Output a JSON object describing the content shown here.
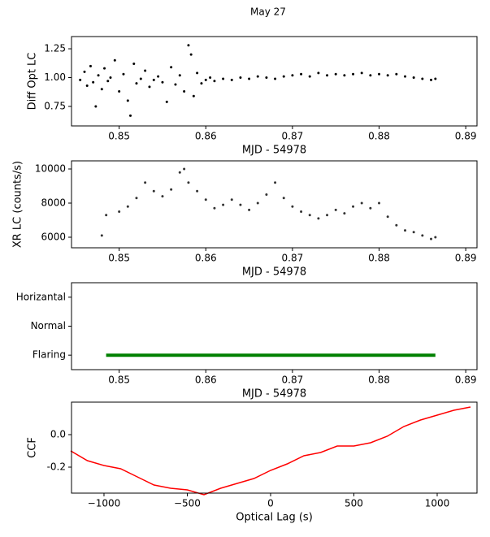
{
  "title": "May 27",
  "chart_data": [
    {
      "type": "scatter",
      "ylabel": "Diff Opt LC",
      "xlabel": "MJD - 54978",
      "color": "#000000",
      "x": [
        0.8455,
        0.846,
        0.8463,
        0.8467,
        0.847,
        0.8473,
        0.8476,
        0.848,
        0.8483,
        0.8487,
        0.849,
        0.8495,
        0.85,
        0.8505,
        0.851,
        0.8513,
        0.8517,
        0.852,
        0.8525,
        0.853,
        0.8535,
        0.854,
        0.8545,
        0.855,
        0.8555,
        0.856,
        0.8565,
        0.857,
        0.8575,
        0.858,
        0.8583,
        0.8586,
        0.859,
        0.8595,
        0.86,
        0.8605,
        0.861,
        0.862,
        0.863,
        0.864,
        0.865,
        0.866,
        0.867,
        0.868,
        0.869,
        0.87,
        0.871,
        0.872,
        0.873,
        0.874,
        0.875,
        0.876,
        0.877,
        0.878,
        0.879,
        0.88,
        0.881,
        0.882,
        0.883,
        0.884,
        0.885,
        0.886,
        0.8865
      ],
      "values": [
        0.98,
        1.05,
        0.93,
        1.1,
        0.96,
        0.75,
        1.02,
        0.9,
        1.08,
        0.97,
        1.0,
        1.15,
        0.88,
        1.03,
        0.8,
        0.67,
        1.12,
        0.95,
        0.99,
        1.06,
        0.92,
        0.98,
        1.01,
        0.96,
        0.79,
        1.09,
        0.94,
        1.02,
        0.88,
        1.28,
        1.2,
        0.84,
        1.04,
        0.95,
        0.98,
        1.0,
        0.97,
        0.99,
        0.98,
        1.0,
        0.99,
        1.01,
        1.0,
        0.99,
        1.01,
        1.02,
        1.03,
        1.01,
        1.04,
        1.02,
        1.03,
        1.02,
        1.03,
        1.04,
        1.02,
        1.03,
        1.02,
        1.03,
        1.01,
        1.0,
        0.99,
        0.98,
        0.99
      ],
      "xlim": [
        0.8445,
        0.8913
      ],
      "xticks": [
        0.85,
        0.86,
        0.87,
        0.88,
        0.89
      ],
      "ylim": [
        0.581,
        1.356
      ],
      "yticks": [
        {
          "value": 0.75,
          "label": "0.75"
        },
        {
          "value": 1.0,
          "label": "1.00"
        },
        {
          "value": 1.25,
          "label": "1.25"
        }
      ]
    },
    {
      "type": "scatter",
      "ylabel": "XR LC (counts/s)",
      "xlabel": "MJD - 54978",
      "color": "#333333",
      "x": [
        0.848,
        0.8485,
        0.85,
        0.851,
        0.852,
        0.853,
        0.854,
        0.855,
        0.856,
        0.857,
        0.8575,
        0.858,
        0.859,
        0.86,
        0.861,
        0.862,
        0.863,
        0.864,
        0.865,
        0.866,
        0.867,
        0.868,
        0.869,
        0.87,
        0.871,
        0.872,
        0.873,
        0.874,
        0.875,
        0.876,
        0.877,
        0.878,
        0.879,
        0.88,
        0.881,
        0.882,
        0.883,
        0.884,
        0.885,
        0.886,
        0.8865
      ],
      "values": [
        6100,
        7300,
        7500,
        7800,
        8300,
        9200,
        8700,
        8400,
        8800,
        9800,
        10000,
        9200,
        8700,
        8200,
        7700,
        7900,
        8200,
        7900,
        7600,
        8000,
        8500,
        9200,
        8300,
        7800,
        7500,
        7300,
        7100,
        7300,
        7600,
        7400,
        7800,
        8000,
        7700,
        8000,
        7200,
        6700,
        6400,
        6300,
        6100,
        5900,
        6000
      ],
      "xlim": [
        0.8445,
        0.8913
      ],
      "xticks": [
        0.85,
        0.86,
        0.87,
        0.88,
        0.89
      ],
      "ylim": [
        5381,
        10476
      ],
      "yticks": [
        6000,
        8000,
        10000
      ]
    },
    {
      "type": "state",
      "xlabel": "MJD - 54978",
      "color": "#008000",
      "y_categories": [
        "Horizantal",
        "Normal",
        "Flaring"
      ],
      "x": [
        0.8485,
        0.8865
      ],
      "values": [
        "Flaring",
        "Flaring"
      ],
      "xlim": [
        0.8445,
        0.8913
      ],
      "xticks": [
        0.85,
        0.86,
        0.87,
        0.88,
        0.89
      ]
    },
    {
      "type": "line",
      "ylabel": "CCF",
      "xlabel": "Optical Lag (s)",
      "color": "#ff0000",
      "x": [
        -1200,
        -1100,
        -1000,
        -900,
        -800,
        -700,
        -600,
        -500,
        -400,
        -300,
        -200,
        -100,
        0,
        100,
        200,
        300,
        400,
        500,
        600,
        700,
        800,
        900,
        1000,
        1100,
        1200
      ],
      "values": [
        -0.1,
        -0.16,
        -0.19,
        -0.21,
        -0.26,
        -0.31,
        -0.33,
        -0.34,
        -0.37,
        -0.33,
        -0.3,
        -0.27,
        -0.22,
        -0.18,
        -0.13,
        -0.11,
        -0.07,
        -0.07,
        -0.05,
        -0.01,
        0.05,
        0.09,
        0.12,
        0.15,
        0.17
      ],
      "xlim": [
        -1195,
        1239
      ],
      "xticks": [
        {
          "value": -1000,
          "label": "−1000"
        },
        {
          "value": -500,
          "label": "−500"
        },
        0,
        500,
        1000
      ],
      "ylim": [
        -0.36,
        0.2
      ],
      "yticks": [
        -0.2,
        {
          "value": 0.0,
          "label": "0.0"
        }
      ]
    }
  ]
}
